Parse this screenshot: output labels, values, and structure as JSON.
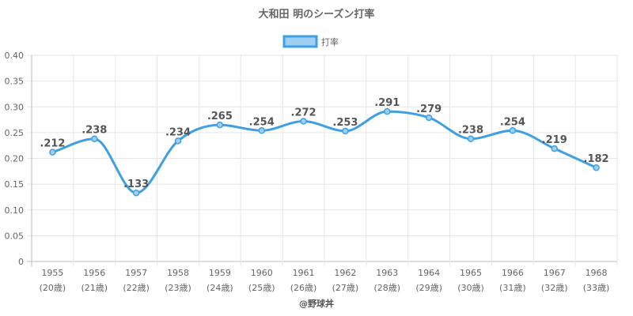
{
  "chart_data": {
    "type": "line",
    "title": "大和田 明のシーズン打率",
    "legend": {
      "label": "打率",
      "position": "top"
    },
    "categories": [
      "1955",
      "1956",
      "1957",
      "1958",
      "1959",
      "1960",
      "1961",
      "1962",
      "1963",
      "1964",
      "1965",
      "1966",
      "1967",
      "1968"
    ],
    "ages": [
      "(20歳)",
      "(21歳)",
      "(22歳)",
      "(23歳)",
      "(24歳)",
      "(25歳)",
      "(26歳)",
      "(27歳)",
      "(28歳)",
      "(29歳)",
      "(30歳)",
      "(31歳)",
      "(32歳)",
      "(33歳)"
    ],
    "series": [
      {
        "name": "打率",
        "values": [
          0.212,
          0.238,
          0.133,
          0.234,
          0.265,
          0.254,
          0.272,
          0.253,
          0.291,
          0.279,
          0.238,
          0.254,
          0.219,
          0.182
        ],
        "labels": [
          ".212",
          ".238",
          ".133",
          ".234",
          ".265",
          ".254",
          ".272",
          ".253",
          ".291",
          ".279",
          ".238",
          ".254",
          ".219",
          ".182"
        ]
      }
    ],
    "ylim": [
      0,
      0.4
    ],
    "yticks": [
      "0",
      "0.05",
      "0.10",
      "0.15",
      "0.20",
      "0.25",
      "0.30",
      "0.35",
      "0.40"
    ],
    "grid": true,
    "colors": {
      "line": "#3ea0e4",
      "fill": "#9fd0f3",
      "grid": "#e6e6e6",
      "axis": "#bdbdbd"
    }
  },
  "credit": "@野球丼"
}
